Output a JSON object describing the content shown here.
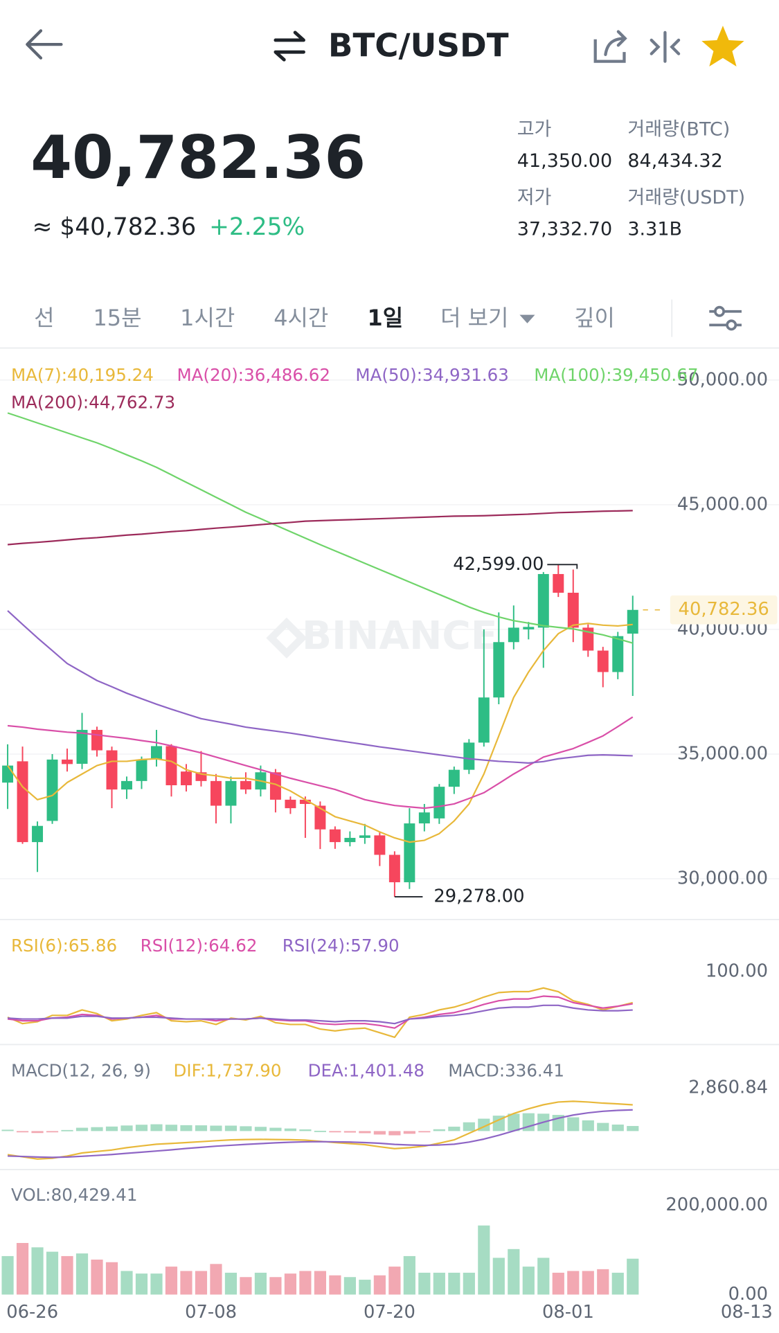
{
  "header": {
    "title": "BTC/USDT"
  },
  "ticker": {
    "price": "40,782.36",
    "usd_price": "≈ $40,782.36",
    "change": "+2.25%"
  },
  "stats": [
    {
      "label": "고가",
      "value": "41,350.00"
    },
    {
      "label": "거래량(BTC)",
      "value": "84,434.32"
    },
    {
      "label": "저가",
      "value": "37,332.70"
    },
    {
      "label": "거래량(USDT)",
      "value": "3.31B"
    }
  ],
  "tabs": [
    "선",
    "15분",
    "1시간",
    "4시간",
    "1일",
    "더 보기",
    "깊이"
  ],
  "selected_tab": 4,
  "chart_data": [
    {
      "type": "candlestick",
      "watermark": "BINANCE",
      "grid": true,
      "up_color": "#2ebd85",
      "down_color": "#f6465d",
      "open": [
        33856,
        34710,
        31470,
        32320,
        34780,
        34610,
        35970,
        35150,
        33580,
        33920,
        34780,
        35320,
        34300,
        34270,
        33920,
        32930,
        33920,
        33580,
        34270,
        33170,
        33170,
        32930,
        31980,
        31470,
        31640,
        31740,
        30960,
        29860,
        32220,
        32420,
        33690,
        34370,
        35460,
        37270,
        39490,
        40000,
        40070,
        42220,
        41470,
        40070,
        39150,
        38290,
        39830,
        null,
        null,
        null,
        null,
        null,
        null,
        null,
        null
      ],
      "high": [
        35392,
        35300,
        32300,
        35000,
        35220,
        36650,
        36100,
        35300,
        34100,
        34900,
        35970,
        35400,
        34600,
        35120,
        34200,
        34100,
        34270,
        34540,
        34400,
        33300,
        33300,
        33100,
        32100,
        31900,
        32200,
        31900,
        31100,
        32830,
        33000,
        33800,
        34500,
        35600,
        40000,
        40680,
        40960,
        40300,
        42300,
        42599,
        42400,
        40200,
        39300,
        39900,
        41350,
        null,
        null,
        null,
        null,
        null,
        null,
        null,
        null
      ],
      "low": [
        32800,
        31400,
        30270,
        32200,
        34300,
        34400,
        34900,
        32830,
        33200,
        33600,
        34500,
        33300,
        33500,
        33700,
        32220,
        32220,
        33400,
        33300,
        32660,
        32600,
        31640,
        31190,
        31200,
        31300,
        31400,
        30510,
        29278,
        29590,
        31900,
        32200,
        33400,
        34200,
        35300,
        37000,
        39200,
        39600,
        38460,
        41300,
        39490,
        38900,
        37680,
        38000,
        37332.7,
        null,
        null,
        null,
        null,
        null,
        null,
        null,
        null
      ],
      "close": [
        34539,
        31470,
        32120,
        34780,
        34600,
        35970,
        35150,
        33580,
        33920,
        34780,
        35320,
        33750,
        33750,
        33920,
        32930,
        33920,
        33580,
        34270,
        33170,
        32830,
        33000,
        31980,
        31470,
        31640,
        31740,
        30960,
        29860,
        32220,
        32660,
        33690,
        34370,
        35460,
        37270,
        39490,
        40070,
        40100,
        42220,
        41470,
        40070,
        39150,
        38290,
        39730,
        40782.36,
        null,
        null,
        null,
        null,
        null,
        null,
        null,
        null
      ],
      "series": [
        {
          "name": "MA(7):40,195.24",
          "color": "#e8b83a",
          "values": [
            34540,
            33690,
            33170,
            33340,
            33860,
            34200,
            34540,
            34710,
            34710,
            34780,
            34810,
            34710,
            34370,
            34200,
            34130,
            34030,
            34030,
            33920,
            33790,
            33520,
            33170,
            32830,
            32490,
            32320,
            32150,
            31880,
            31640,
            31470,
            31540,
            31810,
            32320,
            33000,
            34200,
            35730,
            37270,
            38290,
            39150,
            39830,
            40170,
            40240,
            40170,
            40140,
            40195.24,
            null,
            null,
            null,
            null,
            null,
            null,
            null,
            null
          ]
        },
        {
          "name": "MA(20):36,486.62",
          "color": "#d94fa8",
          "values": [
            36140,
            36080,
            36000,
            35940,
            35880,
            35840,
            35770,
            35700,
            35630,
            35540,
            35460,
            35330,
            35190,
            35050,
            34880,
            34710,
            34540,
            34370,
            34200,
            34030,
            33880,
            33730,
            33580,
            33380,
            33170,
            33050,
            32940,
            32880,
            32830,
            32900,
            33000,
            33220,
            33450,
            33820,
            34200,
            34540,
            34880,
            35050,
            35220,
            35470,
            35730,
            36100,
            36486.62,
            null,
            null,
            null,
            null,
            null,
            null,
            null,
            null
          ]
        },
        {
          "name": "MA(50):34,931.63",
          "color": "#8e65c5",
          "values": [
            40750,
            40200,
            39660,
            39150,
            38630,
            38290,
            37950,
            37700,
            37440,
            37220,
            37000,
            36800,
            36610,
            36420,
            36310,
            36200,
            36080,
            36000,
            35920,
            35840,
            35750,
            35650,
            35560,
            35470,
            35380,
            35290,
            35210,
            35130,
            35050,
            34970,
            34890,
            34810,
            34760,
            34710,
            34680,
            34640,
            34700,
            34810,
            34880,
            34950,
            34970,
            34950,
            34931.63,
            null,
            null,
            null,
            null,
            null,
            null,
            null,
            null
          ]
        },
        {
          "name": "MA(100):39,450.67",
          "color": "#6fd46a",
          "values": [
            48680,
            48480,
            48280,
            48080,
            47880,
            47680,
            47480,
            47250,
            47000,
            46760,
            46500,
            46200,
            45900,
            45600,
            45300,
            45000,
            44700,
            44440,
            44180,
            43920,
            43660,
            43400,
            43150,
            42900,
            42650,
            42400,
            42150,
            41900,
            41650,
            41400,
            41150,
            40900,
            40680,
            40500,
            40350,
            40250,
            40150,
            40080,
            40020,
            39900,
            39780,
            39620,
            39450.67,
            null,
            null,
            null,
            null,
            null,
            null,
            null,
            null
          ]
        },
        {
          "name": "MA(200):44,762.73",
          "color": "#9c2a5a",
          "values": [
            43400,
            43450,
            43490,
            43540,
            43590,
            43640,
            43680,
            43730,
            43780,
            43820,
            43870,
            43920,
            43960,
            44010,
            44060,
            44100,
            44150,
            44200,
            44250,
            44290,
            44340,
            44360,
            44380,
            44400,
            44420,
            44440,
            44460,
            44480,
            44500,
            44520,
            44540,
            44550,
            44560,
            44580,
            44600,
            44620,
            44650,
            44680,
            44700,
            44720,
            44740,
            44750,
            44762.73,
            null,
            null,
            null,
            null,
            null,
            null,
            null,
            null
          ]
        }
      ],
      "annotations": [
        {
          "value": 42599,
          "label": "42,599.00"
        },
        {
          "value": 29278,
          "label": "29,278.00"
        }
      ],
      "last_price": {
        "value": 40782.36,
        "label": "40,782.36"
      },
      "ylim": [
        28400,
        51250
      ],
      "yticks": [
        {
          "value": 30000,
          "label": "30,000.00"
        },
        {
          "value": 35000,
          "label": "35,000.00"
        },
        {
          "value": 40000,
          "label": "40,000.00"
        },
        {
          "value": 45000,
          "label": "45,000.00"
        },
        {
          "value": 50000,
          "label": "50,000.00"
        }
      ]
    },
    {
      "type": "line",
      "grid": false,
      "series": [
        {
          "name": "RSI(6):65.86",
          "color": "#e8b83a",
          "values": [
            50,
            43,
            45,
            52,
            52,
            58,
            54,
            46,
            48,
            52,
            55,
            46,
            45,
            46,
            42,
            49,
            47,
            51,
            44,
            42,
            42,
            37,
            35,
            37,
            38,
            33,
            28,
            50,
            53,
            58,
            61,
            66,
            72,
            77,
            78,
            78,
            82,
            78,
            68,
            64,
            58,
            62,
            65.86,
            null,
            null,
            null,
            null,
            null,
            null,
            null,
            null
          ]
        },
        {
          "name": "RSI(12):64.62",
          "color": "#d94fa8",
          "values": [
            48,
            46,
            46,
            49,
            50,
            53,
            52,
            48,
            49,
            50,
            52,
            48,
            48,
            48,
            46,
            48,
            48,
            49,
            47,
            46,
            46,
            43,
            42,
            43,
            43,
            41,
            38,
            48,
            50,
            53,
            55,
            59,
            64,
            68,
            70,
            70,
            73,
            72,
            66,
            63,
            60,
            62,
            64.62,
            null,
            null,
            null,
            null,
            null,
            null,
            null,
            null
          ]
        },
        {
          "name": "RSI(24):57.90",
          "color": "#8e65c5",
          "values": [
            49,
            48,
            48,
            49,
            49,
            51,
            51,
            49,
            49,
            50,
            50,
            49,
            48,
            48,
            48,
            48,
            48,
            49,
            48,
            47,
            47,
            46,
            45,
            46,
            46,
            45,
            43,
            48,
            49,
            51,
            52,
            54,
            57,
            60,
            61,
            61,
            63,
            63,
            60,
            58,
            57,
            57,
            57.9,
            null,
            null,
            null,
            null,
            null,
            null,
            null,
            null
          ]
        }
      ],
      "ylim": [
        21,
        156
      ],
      "yticks": [
        {
          "value": 100,
          "label": "100.00"
        }
      ]
    },
    {
      "type": "macd",
      "title": "MACD(12, 26, 9)",
      "grid": false,
      "up_color": "#a6dcc3",
      "down_color": "#f2a8b2",
      "series": [
        {
          "name": "DIF:1,737.90",
          "color": "#e8b83a",
          "values": [
            -1560,
            -1700,
            -1850,
            -1800,
            -1650,
            -1450,
            -1350,
            -1250,
            -1100,
            -980,
            -870,
            -820,
            -760,
            -700,
            -640,
            -580,
            -560,
            -550,
            -560,
            -570,
            -600,
            -680,
            -760,
            -830,
            -900,
            -1040,
            -1160,
            -1100,
            -1000,
            -800,
            -580,
            -150,
            290,
            740,
            1160,
            1480,
            1740,
            1920,
            1970,
            1920,
            1850,
            1800,
            1737.9,
            null,
            null,
            null,
            null,
            null,
            null,
            null,
            null
          ]
        },
        {
          "name": "DEA:1,401.48",
          "color": "#8e65c5",
          "values": [
            -1650,
            -1680,
            -1720,
            -1740,
            -1720,
            -1670,
            -1610,
            -1550,
            -1470,
            -1400,
            -1320,
            -1240,
            -1150,
            -1080,
            -1000,
            -940,
            -880,
            -830,
            -780,
            -740,
            -710,
            -700,
            -710,
            -730,
            -760,
            -810,
            -880,
            -920,
            -940,
            -920,
            -870,
            -730,
            -530,
            -280,
            10,
            300,
            590,
            850,
            1060,
            1210,
            1310,
            1370,
            1401.48,
            null,
            null,
            null,
            null,
            null,
            null,
            null,
            null
          ]
        }
      ],
      "histogram": {
        "name": "MACD:336.41",
        "color": "#707a8a",
        "values": [
          90,
          -20,
          -130,
          -60,
          70,
          220,
          260,
          300,
          370,
          420,
          450,
          420,
          390,
          380,
          360,
          360,
          320,
          280,
          220,
          170,
          110,
          20,
          -50,
          -100,
          -140,
          -230,
          -280,
          -180,
          -60,
          120,
          290,
          580,
          820,
          1020,
          1150,
          1180,
          1150,
          1070,
          910,
          710,
          540,
          430,
          336.41,
          null,
          null,
          null,
          null,
          null,
          null,
          null,
          null
        ]
      },
      "ylim": [
        -2490,
        5670
      ],
      "yticks": [
        {
          "value": 2860.84,
          "label": "2,860.84"
        }
      ]
    },
    {
      "type": "bar",
      "title": "VOL:80,429.41",
      "grid": false,
      "up_color": "#a6dcc3",
      "down_color": "#f2a8b2",
      "categories": [
        null,
        null,
        "06-26",
        null,
        null,
        null,
        null,
        null,
        null,
        null,
        null,
        null,
        null,
        null,
        "07-08",
        null,
        null,
        null,
        null,
        null,
        null,
        null,
        null,
        null,
        null,
        null,
        "07-20",
        null,
        null,
        null,
        null,
        null,
        null,
        null,
        null,
        null,
        null,
        null,
        "08-01",
        null,
        null,
        null,
        null,
        null,
        null,
        null,
        null,
        null,
        null,
        null,
        "08-13"
      ],
      "values": [
        86300,
        115700,
        105900,
        96100,
        86300,
        92200,
        78400,
        72600,
        52900,
        47100,
        47100,
        62700,
        52900,
        52900,
        68600,
        49000,
        39200,
        49000,
        39200,
        47100,
        52900,
        52900,
        43100,
        39200,
        33300,
        43100,
        62700,
        86300,
        49000,
        49000,
        49000,
        49000,
        154900,
        82400,
        102000,
        62700,
        82400,
        49000,
        52900,
        52900,
        56900,
        49000,
        80429.41,
        null,
        null,
        null,
        null,
        null,
        null,
        null,
        null
      ],
      "ylim": [
        0,
        278400
      ],
      "yticks": [
        {
          "value": 0,
          "label": "0.00"
        },
        {
          "value": 200000,
          "label": "200,000.00"
        }
      ]
    }
  ]
}
